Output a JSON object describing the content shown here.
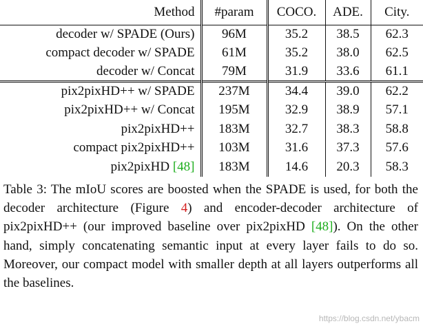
{
  "table": {
    "headers": [
      "Method",
      "#param",
      "COCO.",
      "ADE.",
      "City."
    ],
    "rows": [
      {
        "method": "decoder w/ SPADE (Ours)",
        "param": "96M",
        "coco": "35.2",
        "ade": "38.5",
        "city": "62.3"
      },
      {
        "method": "compact decoder w/ SPADE",
        "param": "61M",
        "coco": "35.2",
        "ade": "38.0",
        "city": "62.5"
      },
      {
        "method": "decoder w/ Concat",
        "param": "79M",
        "coco": "31.9",
        "ade": "33.6",
        "city": "61.1"
      },
      {
        "method": "pix2pixHD++ w/ SPADE",
        "param": "237M",
        "coco": "34.4",
        "ade": "39.0",
        "city": "62.2"
      },
      {
        "method": "pix2pixHD++ w/ Concat",
        "param": "195M",
        "coco": "32.9",
        "ade": "38.9",
        "city": "57.1"
      },
      {
        "method": "pix2pixHD++",
        "param": "183M",
        "coco": "32.7",
        "ade": "38.3",
        "city": "58.8"
      },
      {
        "method": "compact pix2pixHD++",
        "param": "103M",
        "coco": "31.6",
        "ade": "37.3",
        "city": "57.6"
      },
      {
        "method": "pix2pixHD",
        "method_cite": "[48]",
        "param": "183M",
        "coco": "14.6",
        "ade": "20.3",
        "city": "58.3"
      }
    ]
  },
  "caption": {
    "t1": "Table 3: The mIoU scores are boosted when the SPADE is used, for both the decoder architecture (Figure ",
    "fig_ref": "4",
    "t2": ") and encoder-decoder architecture of pix2pixHD++ (our im­proved baseline over pix2pixHD ",
    "cite": "[48]",
    "t3": "). On the other hand, simply concatenating semantic input at every layer fails to do so. Moreover, our compact model with smaller depth at all layers outperforms all the baselines."
  },
  "watermark": "https://blog.csdn.net/ybacm",
  "colors": {
    "citation": "#1fae1f",
    "reference": "#d42020"
  }
}
